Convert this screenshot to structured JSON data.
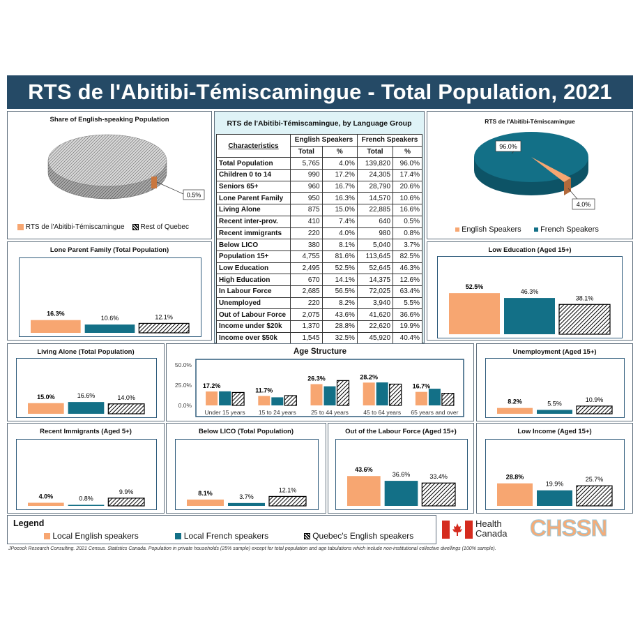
{
  "title": "RTS de l'Abitibi-Témiscamingue - Total Population, 2021",
  "colors": {
    "english": "#f7a671",
    "french": "#137087",
    "quebec": "hatch",
    "header": "#254a66"
  },
  "share_panel": {
    "title": "Share of English-speaking Population",
    "callout": "0.5%",
    "legend": [
      "RTS de l'Abitibi-Témiscamingue",
      "Rest of Quebec"
    ]
  },
  "rts_panel": {
    "title": "RTS de l'Abitibi-Témiscamingue",
    "callout_french": "96.0%",
    "callout_english": "4.0%",
    "legend": [
      "English Speakers",
      "French Speakers"
    ]
  },
  "table": {
    "title": "RTS de l'Abitibi-Témiscamingue, by Language Group",
    "head_characteristics": "Characteristics",
    "head_english": "English Speakers",
    "head_french": "French Speakers",
    "head_total": "Total",
    "head_pct": "%",
    "rows": [
      [
        "Total Population",
        "5,765",
        "4.0%",
        "139,820",
        "96.0%"
      ],
      [
        "Children 0 to 14",
        "990",
        "17.2%",
        "24,305",
        "17.4%"
      ],
      [
        "Seniors 65+",
        "960",
        "16.7%",
        "28,790",
        "20.6%"
      ],
      [
        "Lone Parent Family",
        "950",
        "16.3%",
        "14,570",
        "10.6%"
      ],
      [
        "Living Alone",
        "875",
        "15.0%",
        "22,885",
        "16.6%"
      ],
      [
        "Recent inter-prov.",
        "410",
        "7.4%",
        "640",
        "0.5%"
      ],
      [
        "Recent immigrants",
        "220",
        "4.0%",
        "980",
        "0.8%"
      ],
      [
        "Below LICO",
        "380",
        "8.1%",
        "5,040",
        "3.7%"
      ],
      [
        "Population 15+",
        "4,755",
        "81.6%",
        "113,645",
        "82.5%"
      ],
      [
        "Low Education",
        "2,495",
        "52.5%",
        "52,645",
        "46.3%"
      ],
      [
        "High Education",
        "670",
        "14.1%",
        "14,375",
        "12.6%"
      ],
      [
        "In Labour Force",
        "2,685",
        "56.5%",
        "72,025",
        "63.4%"
      ],
      [
        "Unemployed",
        "220",
        "8.2%",
        "3,940",
        "5.5%"
      ],
      [
        "Out of Labour Force",
        "2,075",
        "43.6%",
        "41,620",
        "36.6%"
      ],
      [
        "Income under $20k",
        "1,370",
        "28.8%",
        "22,620",
        "19.9%"
      ],
      [
        "Income over $50k",
        "1,545",
        "32.5%",
        "45,920",
        "40.4%"
      ]
    ]
  },
  "legend": {
    "title": "Legend",
    "items": [
      "Local English speakers",
      "Local French speakers",
      "Quebec's English speakers"
    ]
  },
  "logos": {
    "health_canada": [
      "Health",
      "Canada"
    ],
    "chssn": "CHSSN"
  },
  "footnote": "JPocock Research Consulting. 2021 Census. Statistics Canada. Population in private households (25% sample) except for total population and age tabulations which include non-institutional collective dwellings (100% sample).",
  "chart_data": [
    {
      "id": "lone-parent",
      "type": "bar",
      "title": "Lone Parent Family (Total Population)",
      "categories": [
        "Local English speakers",
        "Local French speakers",
        "Quebec's English speakers"
      ],
      "values": [
        16.3,
        10.6,
        12.1
      ],
      "labels": [
        "16.3%",
        "10.6%",
        "12.1%"
      ],
      "ylim": [
        0,
        60
      ]
    },
    {
      "id": "low-education",
      "type": "bar",
      "title": "Low Education (Aged 15+)",
      "categories": [
        "Local English speakers",
        "Local French speakers",
        "Quebec's English speakers"
      ],
      "values": [
        52.5,
        46.3,
        38.1
      ],
      "labels": [
        "52.5%",
        "46.3%",
        "38.1%"
      ],
      "ylim": [
        0,
        60
      ]
    },
    {
      "id": "living-alone",
      "type": "bar",
      "title": "Living Alone (Total Population)",
      "categories": [
        "Local English speakers",
        "Local French speakers",
        "Quebec's English speakers"
      ],
      "values": [
        15.0,
        16.6,
        14.0
      ],
      "labels": [
        "15.0%",
        "16.6%",
        "14.0%"
      ],
      "ylim": [
        0,
        60
      ]
    },
    {
      "id": "unemployment",
      "type": "bar",
      "title": "Unemployment (Aged 15+)",
      "categories": [
        "Local English speakers",
        "Local French speakers",
        "Quebec's English speakers"
      ],
      "values": [
        8.2,
        5.5,
        10.9
      ],
      "labels": [
        "8.2%",
        "5.5%",
        "10.9%"
      ],
      "ylim": [
        0,
        60
      ]
    },
    {
      "id": "recent-immigrants",
      "type": "bar",
      "title": "Recent Immigrants (Aged 5+)",
      "categories": [
        "Local English speakers",
        "Local French speakers",
        "Quebec's English speakers"
      ],
      "values": [
        4.0,
        0.8,
        9.9
      ],
      "labels": [
        "4.0%",
        "0.8%",
        "9.9%"
      ],
      "ylim": [
        0,
        60
      ]
    },
    {
      "id": "below-lico",
      "type": "bar",
      "title": "Below LICO (Total Population)",
      "categories": [
        "Local English speakers",
        "Local French speakers",
        "Quebec's English speakers"
      ],
      "values": [
        8.1,
        3.7,
        12.1
      ],
      "labels": [
        "8.1%",
        "3.7%",
        "12.1%"
      ],
      "ylim": [
        0,
        60
      ]
    },
    {
      "id": "out-labour",
      "type": "bar",
      "title": "Out of the Labour Force (Aged 15+)",
      "categories": [
        "Local English speakers",
        "Local French speakers",
        "Quebec's English speakers"
      ],
      "values": [
        43.6,
        36.6,
        33.4
      ],
      "labels": [
        "43.6%",
        "36.6%",
        "33.4%"
      ],
      "ylim": [
        0,
        60
      ]
    },
    {
      "id": "low-income",
      "type": "bar",
      "title": "Low Income (Aged 15+)",
      "categories": [
        "Local English speakers",
        "Local French speakers",
        "Quebec's English speakers"
      ],
      "values": [
        28.8,
        19.9,
        25.7
      ],
      "labels": [
        "28.8%",
        "19.9%",
        "25.7%"
      ],
      "ylim": [
        0,
        60
      ]
    },
    {
      "id": "age-structure",
      "type": "bar",
      "title": "Age Structure",
      "categories": [
        "Under 15 years",
        "15 to 24 years",
        "25 to 44 years",
        "45 to 64 years",
        "65 years and over"
      ],
      "series": [
        {
          "name": "Local English speakers",
          "values": [
            17.2,
            11.7,
            26.3,
            28.2,
            16.7
          ]
        },
        {
          "name": "Local French speakers",
          "values": [
            17.4,
            10.0,
            23.6,
            28.4,
            20.6
          ]
        },
        {
          "name": "Quebec's English speakers",
          "values": [
            16.0,
            12.1,
            30.7,
            26.3,
            15.0
          ]
        }
      ],
      "labels": [
        "17.2%",
        "11.7%",
        "26.3%",
        "28.2%",
        "16.7%"
      ],
      "yticks": [
        "50.0%",
        "25.0%",
        "0.0%"
      ],
      "ylim": [
        0,
        50
      ]
    },
    {
      "id": "share-pie",
      "type": "pie",
      "title": "Share of English-speaking Population",
      "categories": [
        "RTS de l'Abitibi-Témiscamingue",
        "Rest of Quebec"
      ],
      "values": [
        0.5,
        99.5
      ]
    },
    {
      "id": "rts-pie",
      "type": "pie",
      "title": "RTS de l'Abitibi-Témiscamingue",
      "categories": [
        "English Speakers",
        "French Speakers"
      ],
      "values": [
        4.0,
        96.0
      ]
    }
  ]
}
